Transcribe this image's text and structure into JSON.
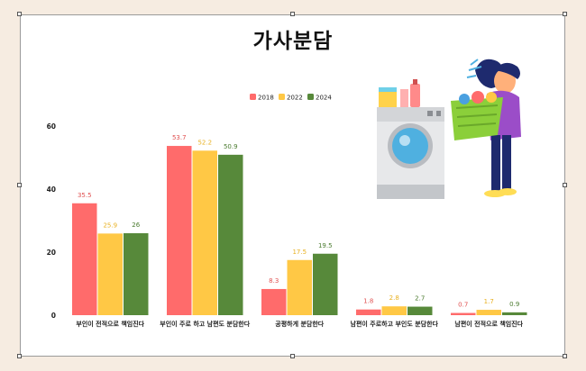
{
  "chart_data": {
    "type": "bar",
    "title": "가사분담",
    "categories": [
      "부인이 전적으로 책임진다",
      "부인이 주로 하고 남편도 분담한다",
      "공평하게 분담한다",
      "남편이 주로하고 부인도 분담한다",
      "남편이 전적으로 책임진다"
    ],
    "series": [
      {
        "name": "2018",
        "values": [
          35.5,
          53.7,
          8.3,
          1.8,
          0.7
        ],
        "labels": [
          "35.5",
          "53.7",
          "8.3",
          "1.8",
          "0.7"
        ],
        "color": "#ff6b6b"
      },
      {
        "name": "2022",
        "values": [
          25.9,
          52.2,
          17.5,
          2.8,
          1.7
        ],
        "labels": [
          "25.9",
          "52.2",
          "17.5",
          "2.8",
          "1.7"
        ],
        "color": "#ffc845"
      },
      {
        "name": "2024",
        "values": [
          26,
          50.9,
          19.5,
          2.7,
          0.9
        ],
        "labels": [
          "26",
          "50.9",
          "19.5",
          "2.7",
          "0.9"
        ],
        "color": "#57893a"
      }
    ],
    "yticks": [
      "0",
      "20",
      "40",
      "60"
    ],
    "ylim": [
      0,
      60
    ],
    "grid": false,
    "legend": "top-center",
    "label_color": {
      "2018": "#e05050",
      "2022": "#e8b020",
      "2024": "#4a7a2e"
    }
  },
  "illustration": {
    "name": "person-carrying-laundry-basket-next-to-washing-machine"
  }
}
